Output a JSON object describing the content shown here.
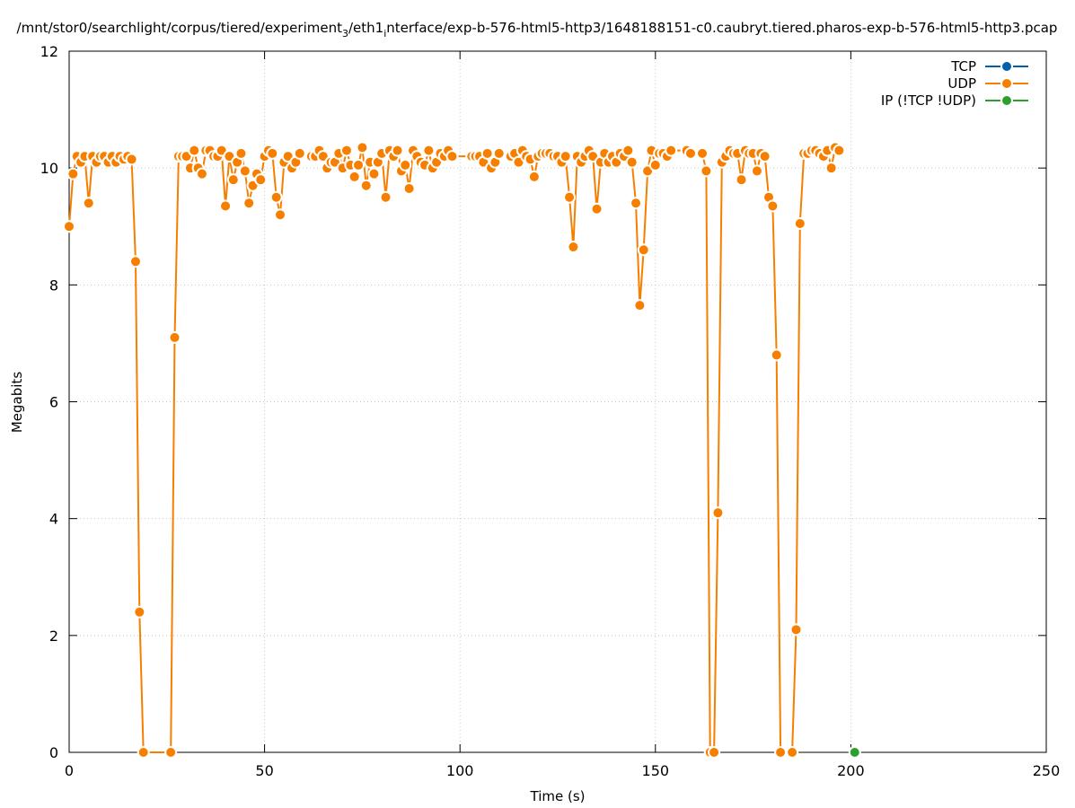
{
  "chart_data": {
    "type": "line",
    "title": "/mnt/stor0/searchlight/corpus/tiered/experiment",
    "title_sub": "3",
    "title_mid": "/eth1",
    "title_sub2": "i",
    "title_tail": "nterface/exp-b-576-html5-http3/1648188151-c0.caubryt.tiered.pharos-exp-b-576-html5-http3.pcap",
    "xlabel": "Time (s)",
    "ylabel": "Megabits",
    "xlim": [
      0,
      250
    ],
    "ylim": [
      0,
      12
    ],
    "xticks": [
      0,
      50,
      100,
      150,
      200,
      250
    ],
    "yticks": [
      0,
      2,
      4,
      6,
      8,
      10,
      12
    ],
    "grid": true,
    "legend_position": "top-right",
    "series": [
      {
        "name": "TCP",
        "color": "#0060ad",
        "points": []
      },
      {
        "name": "UDP",
        "color": "#f77f00",
        "points": [
          [
            0,
            9.0
          ],
          [
            1,
            9.9
          ],
          [
            2,
            10.2
          ],
          [
            3,
            10.1
          ],
          [
            4,
            10.2
          ],
          [
            5,
            9.4
          ],
          [
            6,
            10.2
          ],
          [
            7,
            10.1
          ],
          [
            8,
            10.2
          ],
          [
            9,
            10.2
          ],
          [
            10,
            10.1
          ],
          [
            11,
            10.2
          ],
          [
            12,
            10.1
          ],
          [
            13,
            10.2
          ],
          [
            14,
            10.15
          ],
          [
            15,
            10.2
          ],
          [
            16,
            10.15
          ],
          [
            17,
            8.4
          ],
          [
            18,
            2.4
          ],
          [
            19,
            0
          ],
          [
            26,
            0
          ],
          [
            27,
            7.1
          ],
          [
            28,
            10.2
          ],
          [
            29,
            10.2
          ],
          [
            30,
            10.2
          ],
          [
            31,
            10.0
          ],
          [
            32,
            10.3
          ],
          [
            33,
            10.0
          ],
          [
            34,
            9.9
          ],
          [
            35,
            10.3
          ],
          [
            36,
            10.3
          ],
          [
            37,
            10.2
          ],
          [
            38,
            10.2
          ],
          [
            39,
            10.3
          ],
          [
            40,
            9.35
          ],
          [
            41,
            10.2
          ],
          [
            42,
            9.8
          ],
          [
            43,
            10.1
          ],
          [
            44,
            10.25
          ],
          [
            45,
            9.95
          ],
          [
            46,
            9.4
          ],
          [
            47,
            9.7
          ],
          [
            48,
            9.9
          ],
          [
            49,
            9.8
          ],
          [
            50,
            10.2
          ],
          [
            51,
            10.3
          ],
          [
            52,
            10.25
          ],
          [
            53,
            9.5
          ],
          [
            54,
            9.2
          ],
          [
            55,
            10.1
          ],
          [
            56,
            10.2
          ],
          [
            57,
            10.0
          ],
          [
            58,
            10.1
          ],
          [
            59,
            10.25
          ],
          [
            62,
            10.2
          ],
          [
            63,
            10.2
          ],
          [
            64,
            10.3
          ],
          [
            65,
            10.2
          ],
          [
            66,
            10.0
          ],
          [
            67,
            10.1
          ],
          [
            68,
            10.1
          ],
          [
            69,
            10.25
          ],
          [
            70,
            10.0
          ],
          [
            71,
            10.3
          ],
          [
            72,
            10.05
          ],
          [
            73,
            9.85
          ],
          [
            74,
            10.05
          ],
          [
            75,
            10.35
          ],
          [
            76,
            9.7
          ],
          [
            77,
            10.1
          ],
          [
            78,
            9.9
          ],
          [
            79,
            10.1
          ],
          [
            80,
            10.25
          ],
          [
            81,
            9.5
          ],
          [
            82,
            10.3
          ],
          [
            83,
            10.2
          ],
          [
            84,
            10.3
          ],
          [
            85,
            9.95
          ],
          [
            86,
            10.05
          ],
          [
            87,
            9.65
          ],
          [
            88,
            10.3
          ],
          [
            89,
            10.2
          ],
          [
            90,
            10.1
          ],
          [
            91,
            10.05
          ],
          [
            92,
            10.3
          ],
          [
            93,
            10.0
          ],
          [
            94,
            10.1
          ],
          [
            95,
            10.25
          ],
          [
            96,
            10.2
          ],
          [
            97,
            10.3
          ],
          [
            98,
            10.2
          ],
          [
            103,
            10.2
          ],
          [
            104,
            10.2
          ],
          [
            105,
            10.2
          ],
          [
            106,
            10.1
          ],
          [
            107,
            10.25
          ],
          [
            108,
            10.0
          ],
          [
            109,
            10.1
          ],
          [
            110,
            10.25
          ],
          [
            113,
            10.2
          ],
          [
            114,
            10.25
          ],
          [
            115,
            10.1
          ],
          [
            116,
            10.3
          ],
          [
            117,
            10.2
          ],
          [
            118,
            10.15
          ],
          [
            119,
            9.85
          ],
          [
            120,
            10.2
          ],
          [
            121,
            10.25
          ],
          [
            122,
            10.25
          ],
          [
            123,
            10.25
          ],
          [
            124,
            10.2
          ],
          [
            125,
            10.2
          ],
          [
            126,
            10.1
          ],
          [
            127,
            10.2
          ],
          [
            128,
            9.5
          ],
          [
            129,
            8.65
          ],
          [
            130,
            10.2
          ],
          [
            131,
            10.1
          ],
          [
            132,
            10.2
          ],
          [
            133,
            10.3
          ],
          [
            134,
            10.2
          ],
          [
            135,
            9.3
          ],
          [
            136,
            10.1
          ],
          [
            137,
            10.25
          ],
          [
            138,
            10.1
          ],
          [
            139,
            10.2
          ],
          [
            140,
            10.1
          ],
          [
            141,
            10.25
          ],
          [
            142,
            10.2
          ],
          [
            143,
            10.3
          ],
          [
            144,
            10.1
          ],
          [
            145,
            9.4
          ],
          [
            146,
            7.65
          ],
          [
            147,
            8.6
          ],
          [
            148,
            9.95
          ],
          [
            149,
            10.3
          ],
          [
            150,
            10.05
          ],
          [
            151,
            10.25
          ],
          [
            152,
            10.25
          ],
          [
            153,
            10.2
          ],
          [
            154,
            10.3
          ],
          [
            158,
            10.3
          ],
          [
            159,
            10.25
          ],
          [
            162,
            10.25
          ],
          [
            163,
            9.95
          ],
          [
            164,
            0
          ],
          [
            165,
            0
          ],
          [
            166,
            4.1
          ],
          [
            167,
            10.1
          ],
          [
            168,
            10.2
          ],
          [
            169,
            10.3
          ],
          [
            170,
            10.25
          ],
          [
            171,
            10.25
          ],
          [
            172,
            9.8
          ],
          [
            173,
            10.3
          ],
          [
            174,
            10.25
          ],
          [
            175,
            10.25
          ],
          [
            176,
            9.95
          ],
          [
            177,
            10.25
          ],
          [
            178,
            10.2
          ],
          [
            179,
            9.5
          ],
          [
            180,
            9.35
          ],
          [
            181,
            6.8
          ],
          [
            182,
            0
          ],
          [
            185,
            0
          ],
          [
            186,
            2.1
          ],
          [
            187,
            9.05
          ],
          [
            188,
            10.25
          ],
          [
            189,
            10.25
          ],
          [
            190,
            10.3
          ],
          [
            191,
            10.3
          ],
          [
            192,
            10.25
          ],
          [
            193,
            10.2
          ],
          [
            194,
            10.3
          ],
          [
            195,
            10.0
          ],
          [
            196,
            10.35
          ],
          [
            197,
            10.3
          ]
        ]
      },
      {
        "name": "IP (!TCP  !UDP)",
        "color": "#2ca02c",
        "points": [
          [
            201,
            0
          ]
        ]
      }
    ]
  }
}
